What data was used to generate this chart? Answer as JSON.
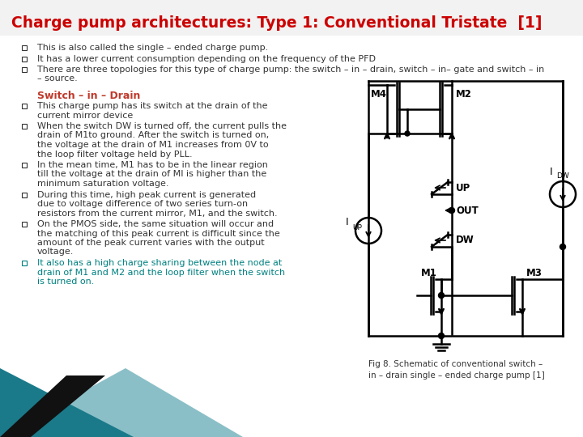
{
  "title": "Charge pump architectures: Type 1: Conventional Tristate  [1]",
  "title_color": "#cc0000",
  "title_fontsize": 13.5,
  "background_color": "#ffffff",
  "bullet_color": "#333333",
  "subheading_color": "#c0392b",
  "highlight_color": "#008080",
  "bullet_symbol": "□",
  "intro_bullets": [
    "This is also called the single – ended charge pump.",
    "It has a lower current consumption depending on the frequency of the PFD",
    "There are three topologies for this type of charge pump: the switch – in – drain, switch – in– gate and switch – in\n– source."
  ],
  "subheading": "Switch – in – Drain",
  "switch_bullets": [
    "This charge pump has its switch at the drain of the\ncurrent mirror device",
    "When the switch DW is turned off, the current pulls the\ndrain of M1to ground. After the switch is turned on,\nthe voltage at the drain of M1 increases from 0V to\nthe loop filter voltage held by PLL.",
    "In the mean time, M1 has to be in the linear region\ntill the voltage at the drain of MI is higher than the\nminimum saturation voltage.",
    "During this time, high peak current is generated\ndue to voltage difference of two series turn-on\nresistors from the current mirror, M1, and the switch.",
    "On the PMOS side, the same situation will occur and\nthe matching of this peak current is difficult since the\namount of the peak current varies with the output\nvoltage.",
    "It also has a high charge sharing between the node at\ndrain of M1 and M2 and the loop filter when the switch\nis turned on."
  ],
  "highlight_bullets": [
    5
  ],
  "fig_caption": "Fig 8. Schematic of conventional switch –\nin – drain single – ended charge pump [1]",
  "footer_ref": "[1]",
  "teal_bar": true,
  "teal_color": "#1a7a8a",
  "light_teal_color": "#8bbfc7",
  "black_color": "#111111"
}
